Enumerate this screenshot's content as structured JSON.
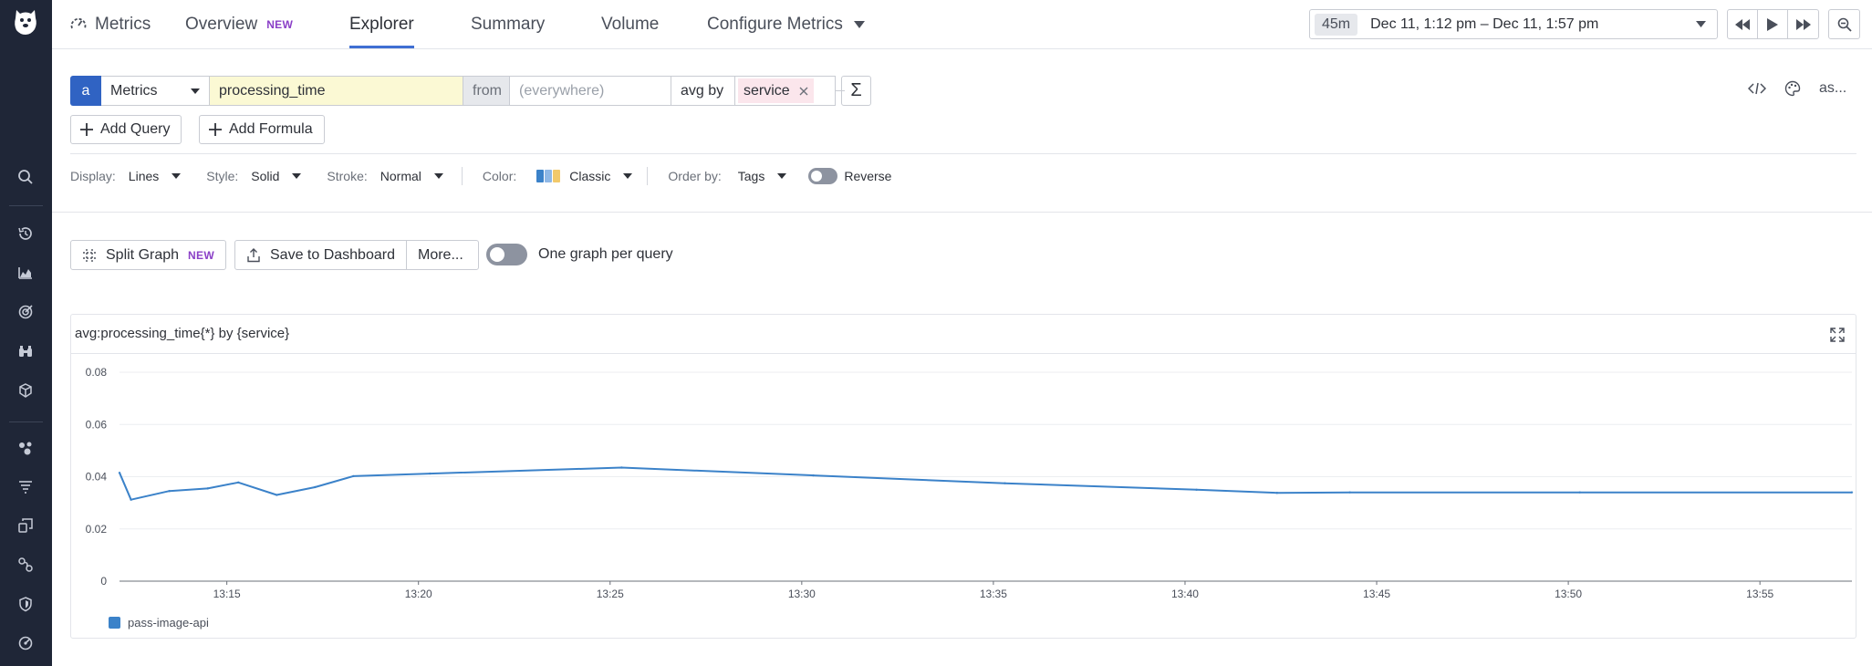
{
  "nav": {
    "title": "Metrics",
    "items": [
      {
        "label": "Overview",
        "badge": "NEW"
      },
      {
        "label": "Explorer"
      },
      {
        "label": "Summary"
      },
      {
        "label": "Volume"
      },
      {
        "label": "Configure Metrics"
      }
    ],
    "time_chip": "45m",
    "time_range": "Dec 11, 1:12 pm – Dec 11, 1:57 pm"
  },
  "query": {
    "letter": "a",
    "source": "Metrics",
    "metric": "processing_time",
    "from_label": "from",
    "where_placeholder": "(everywhere)",
    "agg_label": "avg by",
    "group_tag": "service",
    "formula_symbol": "Σ",
    "more_text": "as..."
  },
  "add_query_label": "Add Query",
  "add_formula_label": "Add Formula",
  "display_options": {
    "display_label": "Display:",
    "display_value": "Lines",
    "style_label": "Style:",
    "style_value": "Solid",
    "stroke_label": "Stroke:",
    "stroke_value": "Normal",
    "color_label": "Color:",
    "color_value": "Classic",
    "order_label": "Order by:",
    "order_value": "Tags",
    "reverse_label": "Reverse"
  },
  "toolbar": {
    "split_graph": "Split Graph",
    "split_badge": "NEW",
    "save_dashboard": "Save to Dashboard",
    "more": "More...",
    "one_graph_label": "One graph per query"
  },
  "graph": {
    "title": "avg:processing_time{*} by {service}"
  },
  "colors": {
    "accent": "#3f6fd3",
    "series": "#3b82c9",
    "sidebar": "#1f2637",
    "badge": "#8a3fc7",
    "metric_bg": "#fbf9d4",
    "tag_bg": "#fbe6ec"
  },
  "chart_data": {
    "type": "line",
    "title": "avg:processing_time{*} by {service}",
    "xlabel": "",
    "ylabel": "",
    "x_tick_labels": [
      "13:15",
      "13:20",
      "13:25",
      "13:30",
      "13:35",
      "13:40",
      "13:45",
      "13:50",
      "13:55"
    ],
    "y_tick_labels": [
      "0",
      "0.02",
      "0.04",
      "0.06",
      "0.08"
    ],
    "ylim": [
      0,
      0.08
    ],
    "xlim_minutes": [
      12.2,
      57.4
    ],
    "grid": true,
    "legend_position": "bottom-left",
    "series": [
      {
        "name": "pass-image-api",
        "x_minutes": [
          12.2,
          12.5,
          13.5,
          14.5,
          15.3,
          16.3,
          17.3,
          18.3,
          20.3,
          25.3,
          30.3,
          35.3,
          40.3,
          42.4,
          44.3,
          50.3,
          57.4
        ],
        "values": [
          0.0415,
          0.0312,
          0.0345,
          0.0355,
          0.0378,
          0.033,
          0.036,
          0.0402,
          0.0412,
          0.0435,
          0.0405,
          0.0375,
          0.035,
          0.0338,
          0.034,
          0.034,
          0.034
        ]
      }
    ]
  }
}
